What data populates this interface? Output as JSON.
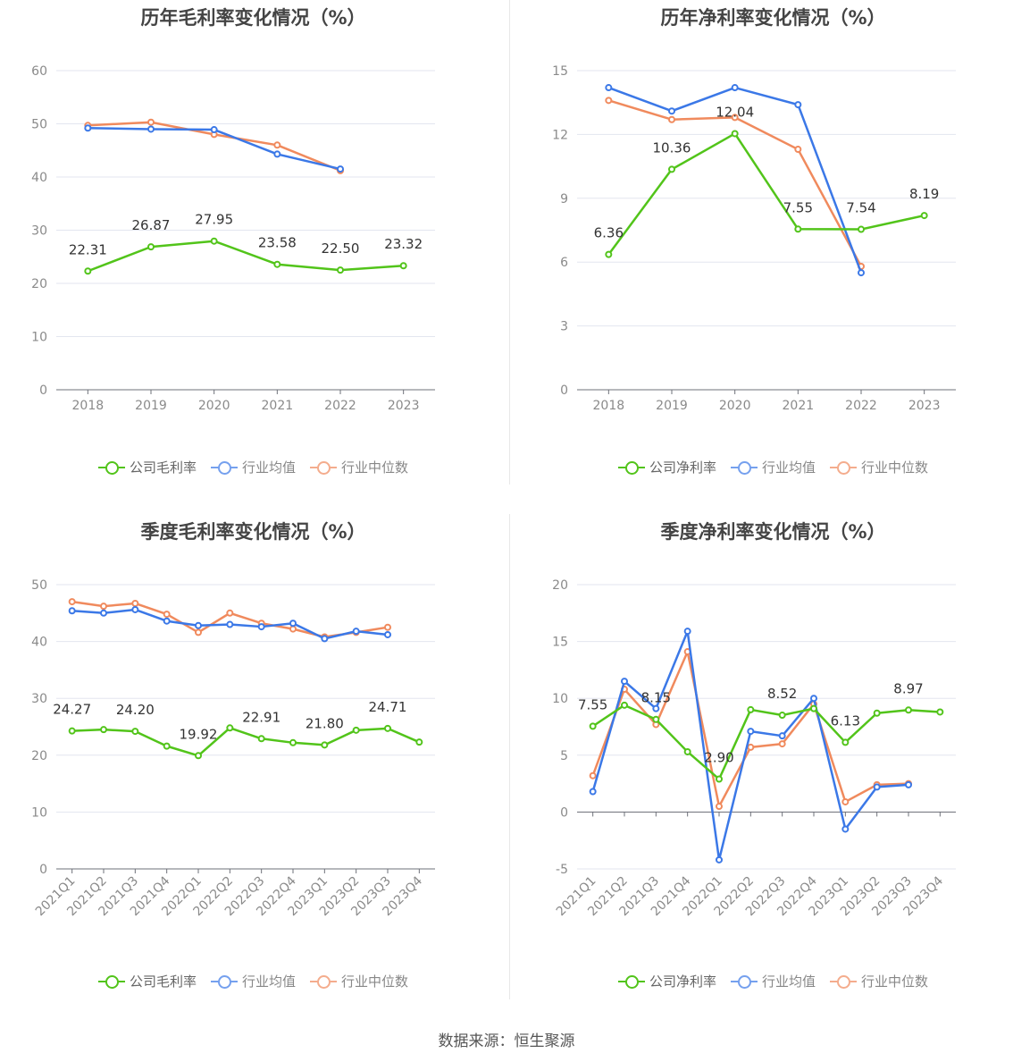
{
  "source": "数据来源：恒生聚源",
  "colors": {
    "company": "#52c41a",
    "avg": "#3b78e7",
    "median": "#f08a5d",
    "grid": "#e3e6ef",
    "axis": "#6e7079",
    "tick_text": "#8a8a8a",
    "label_text": "#333333"
  },
  "chart_data": [
    {
      "type": "line",
      "title": "历年毛利率变化情况（%）",
      "categories": [
        "2018",
        "2019",
        "2020",
        "2021",
        "2022",
        "2023"
      ],
      "ylim": [
        0,
        60
      ],
      "yticks": [
        0,
        10,
        20,
        30,
        40,
        50,
        60
      ],
      "grid": true,
      "legend_position": "bottom",
      "series": [
        {
          "name": "公司毛利率",
          "color_key": "company",
          "values": [
            22.31,
            26.87,
            27.95,
            23.58,
            22.5,
            23.32
          ],
          "labels": [
            "22.31",
            "26.87",
            "27.95",
            "23.58",
            "22.50",
            "23.32"
          ]
        },
        {
          "name": "行业均值",
          "color_key": "avg",
          "values": [
            49.2,
            49.0,
            48.9,
            44.3,
            41.5,
            null
          ]
        },
        {
          "name": "行业中位数",
          "color_key": "median",
          "values": [
            49.7,
            50.3,
            48.0,
            46.0,
            41.2,
            null
          ]
        }
      ]
    },
    {
      "type": "line",
      "title": "历年净利率变化情况（%）",
      "categories": [
        "2018",
        "2019",
        "2020",
        "2021",
        "2022",
        "2023"
      ],
      "ylim": [
        0,
        15
      ],
      "yticks": [
        0,
        3,
        6,
        9,
        12,
        15
      ],
      "grid": true,
      "legend_position": "bottom",
      "series": [
        {
          "name": "公司净利率",
          "color_key": "company",
          "values": [
            6.36,
            10.36,
            12.04,
            7.55,
            7.54,
            8.19
          ],
          "labels": [
            "6.36",
            "10.36",
            "12.04",
            "7.55",
            "7.54",
            "8.19"
          ]
        },
        {
          "name": "行业均值",
          "color_key": "avg",
          "values": [
            14.2,
            13.1,
            14.2,
            13.4,
            5.5,
            null
          ]
        },
        {
          "name": "行业中位数",
          "color_key": "median",
          "values": [
            13.6,
            12.7,
            12.8,
            11.3,
            5.8,
            null
          ]
        }
      ]
    },
    {
      "type": "line",
      "title": "季度毛利率变化情况（%）",
      "categories": [
        "2021Q1",
        "2021Q2",
        "2021Q3",
        "2021Q4",
        "2022Q1",
        "2022Q2",
        "2022Q3",
        "2022Q4",
        "2023Q1",
        "2023Q2",
        "2023Q3",
        "2023Q4"
      ],
      "ylim": [
        0,
        50
      ],
      "yticks": [
        0,
        10,
        20,
        30,
        40,
        50
      ],
      "grid": true,
      "legend_position": "bottom",
      "rotate_x_labels": true,
      "series": [
        {
          "name": "公司毛利率",
          "color_key": "company",
          "values": [
            24.27,
            24.5,
            24.2,
            21.6,
            19.92,
            24.8,
            22.91,
            22.2,
            21.8,
            24.4,
            24.71,
            22.3
          ],
          "labels": [
            "24.27",
            null,
            "24.20",
            null,
            "19.92",
            null,
            "22.91",
            null,
            "21.80",
            null,
            "24.71",
            null
          ]
        },
        {
          "name": "行业均值",
          "color_key": "avg",
          "values": [
            45.4,
            45.0,
            45.6,
            43.6,
            42.8,
            43.0,
            42.6,
            43.2,
            40.5,
            41.8,
            41.2,
            null
          ]
        },
        {
          "name": "行业中位数",
          "color_key": "median",
          "values": [
            47.0,
            46.2,
            46.7,
            44.8,
            41.6,
            45.0,
            43.2,
            42.2,
            40.8,
            41.6,
            42.5,
            null
          ]
        }
      ]
    },
    {
      "type": "line",
      "title": "季度净利率变化情况（%）",
      "categories": [
        "2021Q1",
        "2021Q2",
        "2021Q3",
        "2021Q4",
        "2022Q1",
        "2022Q2",
        "2022Q3",
        "2022Q4",
        "2023Q1",
        "2023Q2",
        "2023Q3",
        "2023Q4"
      ],
      "ylim": [
        -5,
        20
      ],
      "yticks": [
        -5,
        0,
        5,
        10,
        15,
        20
      ],
      "grid": true,
      "legend_position": "bottom",
      "rotate_x_labels": true,
      "series": [
        {
          "name": "公司净利率",
          "color_key": "company",
          "values": [
            7.55,
            9.4,
            8.15,
            5.3,
            2.9,
            9.0,
            8.52,
            9.1,
            6.13,
            8.7,
            8.97,
            8.8
          ],
          "labels": [
            "7.55",
            null,
            "8.15",
            null,
            "2.90",
            null,
            "8.52",
            null,
            "6.13",
            null,
            "8.97",
            null
          ]
        },
        {
          "name": "行业均值",
          "color_key": "avg",
          "values": [
            1.8,
            11.5,
            9.1,
            15.9,
            -4.2,
            7.1,
            6.7,
            10.0,
            -1.5,
            2.2,
            2.4,
            null
          ]
        },
        {
          "name": "行业中位数",
          "color_key": "median",
          "values": [
            3.2,
            10.8,
            7.7,
            14.1,
            0.5,
            5.7,
            6.0,
            9.5,
            0.9,
            2.4,
            2.5,
            null
          ]
        }
      ]
    }
  ]
}
